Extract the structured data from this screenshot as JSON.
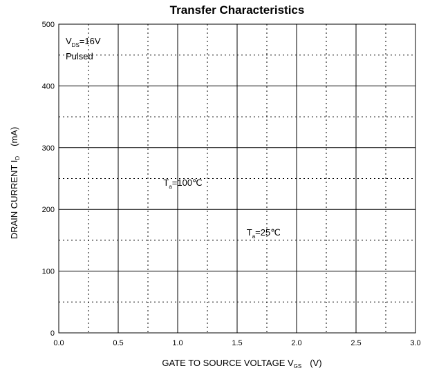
{
  "chart_data": {
    "type": "line",
    "title": "Transfer Characteristics",
    "xlabel": {
      "main": "GATE TO SOURCE VOLTAGE   V",
      "sub": "GS",
      "unit": "(V)"
    },
    "ylabel": {
      "main": "DRAIN CURRENT   I",
      "sub": "D",
      "unit": "(mA)"
    },
    "xlim": [
      0.0,
      3.0
    ],
    "ylim": [
      0,
      500
    ],
    "xticks": [
      0.0,
      0.5,
      1.0,
      1.5,
      2.0,
      2.5,
      3.0
    ],
    "xtick_labels": [
      "0.0",
      "0.5",
      "1.0",
      "1.5",
      "2.0",
      "2.5",
      "3.0"
    ],
    "yticks": [
      0,
      100,
      200,
      300,
      400,
      500
    ],
    "ytick_labels": [
      "0",
      "100",
      "200",
      "300",
      "400",
      "500"
    ],
    "grid": {
      "major": true,
      "minor_dotted": true
    },
    "conditions": [
      {
        "main": "V",
        "sub": "DS",
        "rest": "=16V"
      },
      {
        "main": "Pulsed",
        "sub": "",
        "rest": ""
      }
    ],
    "annotations": [
      {
        "main": "T",
        "sub": "a",
        "rest": "=100℃",
        "x": 0.88,
        "y": 243
      },
      {
        "main": "T",
        "sub": "a",
        "rest": "=25℃",
        "x": 1.58,
        "y": 162
      }
    ],
    "series": []
  }
}
